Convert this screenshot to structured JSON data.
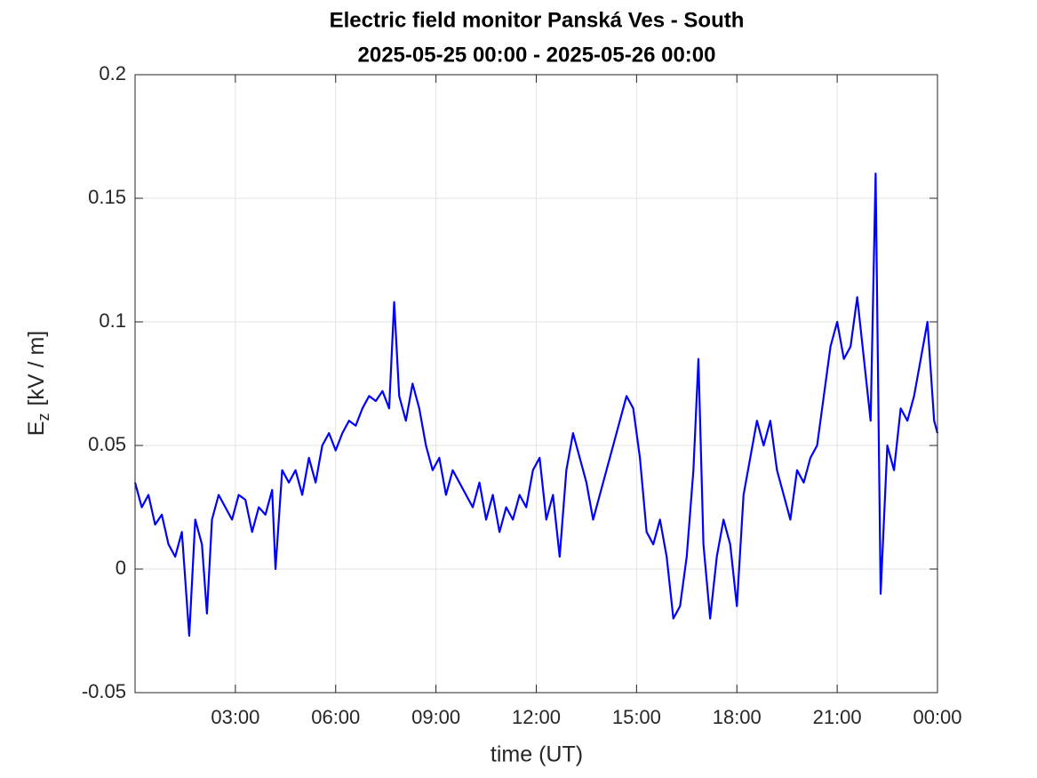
{
  "chart_data": {
    "type": "line",
    "title": "Electric field monitor Panská Ves - South",
    "subtitle": "2025-05-25 00:00 - 2025-05-26 00:00",
    "xlabel": "time (UT)",
    "ylabel": {
      "symbol": "E",
      "subscript": "z",
      "unit": "[kV / m]"
    },
    "color": "#0000ff",
    "grid": true,
    "xlim": [
      0,
      24
    ],
    "ylim": [
      -0.05,
      0.2
    ],
    "xticks": [
      {
        "value": 3,
        "label": "03:00"
      },
      {
        "value": 6,
        "label": "06:00"
      },
      {
        "value": 9,
        "label": "09:00"
      },
      {
        "value": 12,
        "label": "12:00"
      },
      {
        "value": 15,
        "label": "15:00"
      },
      {
        "value": 18,
        "label": "18:00"
      },
      {
        "value": 21,
        "label": "21:00"
      },
      {
        "value": 24,
        "label": "00:00"
      }
    ],
    "yticks": [
      -0.05,
      0,
      0.05,
      0.1,
      0.15,
      0.2
    ],
    "x": [
      0,
      0.2,
      0.4,
      0.6,
      0.8,
      1.0,
      1.2,
      1.4,
      1.62,
      1.8,
      2.0,
      2.15,
      2.3,
      2.5,
      2.7,
      2.9,
      3.1,
      3.3,
      3.5,
      3.7,
      3.9,
      4.1,
      4.2,
      4.4,
      4.6,
      4.8,
      5.0,
      5.2,
      5.4,
      5.6,
      5.8,
      6.0,
      6.2,
      6.4,
      6.6,
      6.8,
      7.0,
      7.2,
      7.4,
      7.6,
      7.75,
      7.9,
      8.1,
      8.3,
      8.5,
      8.7,
      8.9,
      9.1,
      9.3,
      9.5,
      9.7,
      9.9,
      10.1,
      10.3,
      10.5,
      10.7,
      10.9,
      11.1,
      11.3,
      11.5,
      11.7,
      11.9,
      12.1,
      12.3,
      12.5,
      12.7,
      12.9,
      13.1,
      13.3,
      13.5,
      13.7,
      13.9,
      14.1,
      14.3,
      14.5,
      14.7,
      14.9,
      15.1,
      15.3,
      15.5,
      15.7,
      15.9,
      16.1,
      16.3,
      16.5,
      16.7,
      16.85,
      17.0,
      17.2,
      17.4,
      17.6,
      17.8,
      18.0,
      18.2,
      18.4,
      18.6,
      18.8,
      19.0,
      19.2,
      19.4,
      19.6,
      19.8,
      20.0,
      20.2,
      20.4,
      20.6,
      20.8,
      21.0,
      21.2,
      21.4,
      21.6,
      21.8,
      22.0,
      22.15,
      22.3,
      22.5,
      22.7,
      22.9,
      23.1,
      23.3,
      23.5,
      23.7,
      23.9,
      24.0
    ],
    "values": [
      0.035,
      0.025,
      0.03,
      0.018,
      0.022,
      0.01,
      0.005,
      0.015,
      -0.027,
      0.02,
      0.01,
      -0.018,
      0.02,
      0.03,
      0.025,
      0.02,
      0.03,
      0.028,
      0.015,
      0.025,
      0.022,
      0.032,
      0.0,
      0.04,
      0.035,
      0.04,
      0.03,
      0.045,
      0.035,
      0.05,
      0.055,
      0.048,
      0.055,
      0.06,
      0.058,
      0.065,
      0.07,
      0.068,
      0.072,
      0.065,
      0.108,
      0.07,
      0.06,
      0.075,
      0.065,
      0.05,
      0.04,
      0.045,
      0.03,
      0.04,
      0.035,
      0.03,
      0.025,
      0.035,
      0.02,
      0.03,
      0.015,
      0.025,
      0.02,
      0.03,
      0.025,
      0.04,
      0.045,
      0.02,
      0.03,
      0.005,
      0.04,
      0.055,
      0.045,
      0.035,
      0.02,
      0.03,
      0.04,
      0.05,
      0.06,
      0.07,
      0.065,
      0.045,
      0.015,
      0.01,
      0.02,
      0.005,
      -0.02,
      -0.015,
      0.005,
      0.04,
      0.085,
      0.01,
      -0.02,
      0.005,
      0.02,
      0.01,
      -0.015,
      0.03,
      0.045,
      0.06,
      0.05,
      0.06,
      0.04,
      0.03,
      0.02,
      0.04,
      0.035,
      0.045,
      0.05,
      0.07,
      0.09,
      0.1,
      0.085,
      0.09,
      0.11,
      0.085,
      0.06,
      0.16,
      -0.01,
      0.05,
      0.04,
      0.065,
      0.06,
      0.07,
      0.085,
      0.1,
      0.06,
      0.055
    ]
  }
}
